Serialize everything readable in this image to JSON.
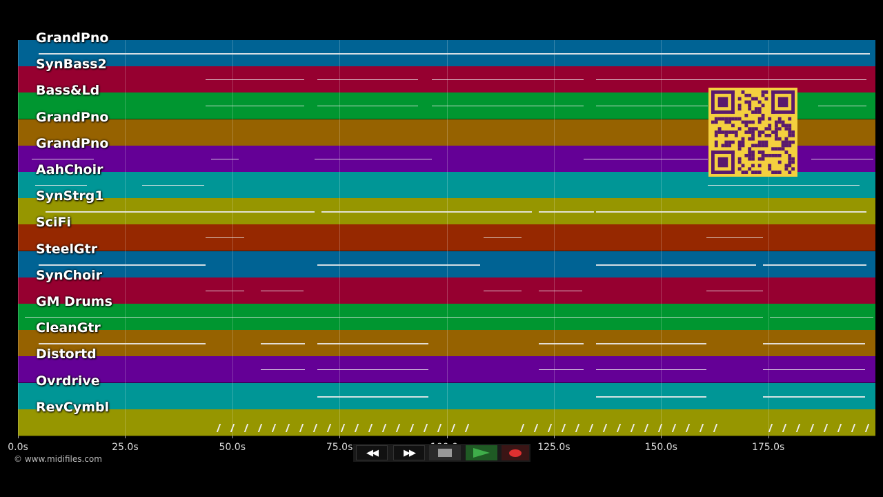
{
  "tracks": [
    {
      "name": "GrandPno",
      "color": "#006394"
    },
    {
      "name": "SynBass2",
      "color": "#960030"
    },
    {
      "name": "Bass&Ld",
      "color": "#009630"
    },
    {
      "name": "GrandPno",
      "color": "#966200"
    },
    {
      "name": "GrandPno",
      "color": "#640096"
    },
    {
      "name": "AahChoir",
      "color": "#009696"
    },
    {
      "name": "SynStrg1",
      "color": "#969600"
    },
    {
      "name": "SciFi",
      "color": "#962800"
    },
    {
      "name": "SteelGtr",
      "color": "#006394"
    },
    {
      "name": "SynChoir",
      "color": "#960030"
    },
    {
      "name": "GM Drums",
      "color": "#009630"
    },
    {
      "name": "CleanGtr",
      "color": "#966200"
    },
    {
      "name": "Distortd",
      "color": "#640096"
    },
    {
      "name": "Ovrdrive",
      "color": "#009696"
    },
    {
      "name": "RevCymbl",
      "color": "#969600"
    }
  ],
  "time_axis": {
    "ticks": [
      "0.0s",
      "25.0s",
      "50.0s",
      "75.0s",
      "100.0s",
      "125.0s",
      "150.0s",
      "175.0s"
    ],
    "tick_values": [
      0,
      25,
      50,
      75,
      100,
      125,
      150,
      175
    ],
    "max_seconds": 200
  },
  "copyright": "© www.midifiles.com",
  "transport": {
    "rewind_icon": "rewind-icon",
    "forward_icon": "fast-forward-icon",
    "stop_icon": "stop-icon",
    "play_icon": "play-icon",
    "record_icon": "record-icon",
    "play_color": "#3fae4a",
    "record_color": "#e03030"
  },
  "qr_code": {
    "color": "#f4d03f",
    "icon": "qr-code-icon"
  }
}
